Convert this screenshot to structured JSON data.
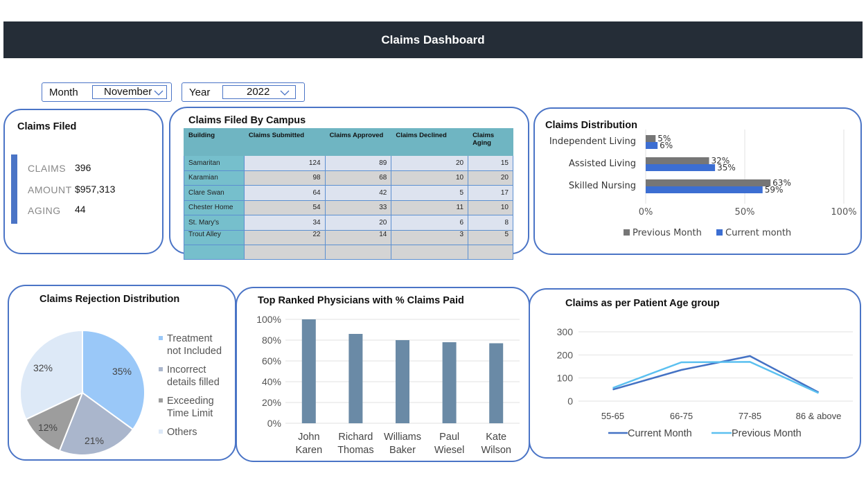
{
  "header": {
    "title": "Claims Dashboard"
  },
  "filters": {
    "month": {
      "label": "Month",
      "value": "November"
    },
    "year": {
      "label": "Year",
      "value": "2022"
    }
  },
  "claims_filed": {
    "title": "Claims Filed",
    "claims_label": "CLAIMS",
    "claims_value": "396",
    "amount_label": "AMOUNT",
    "amount_value": "$957,313",
    "aging_label": "AGING",
    "aging_value": "44"
  },
  "campus": {
    "title": "Claims Filed By Campus",
    "columns": [
      "Building",
      "Claims Submitted",
      "Claims Approved",
      "Claims Declined",
      "Claims Aging"
    ],
    "rows": [
      [
        "Samaritan",
        "124",
        "89",
        "20",
        "15"
      ],
      [
        "Karamian",
        "98",
        "68",
        "10",
        "20"
      ],
      [
        "Clare Swan",
        "64",
        "42",
        "5",
        "17"
      ],
      [
        "Chester Home",
        "54",
        "33",
        "11",
        "10"
      ],
      [
        "St. Mary's",
        "34",
        "20",
        "6",
        "8"
      ],
      [
        "Trout Alley",
        "22",
        "14",
        "3",
        "5"
      ]
    ]
  },
  "distribution": {
    "title": "Claims Distribution"
  },
  "rejection": {
    "title": "Claims Rejection Distribution"
  },
  "physicians": {
    "title": "Top Ranked Physicians with % Claims Paid"
  },
  "age_group": {
    "title": "Claims as per Patient Age group"
  },
  "colors": {
    "header_bg": "#252d37",
    "card_border": "#4a74c6",
    "previous_month_bar": "#767676",
    "current_month_bar": "#3c6ed2",
    "physician_bar": "#6a8aa6",
    "current_line": "#4472c4",
    "previous_line": "#5bc0f0"
  },
  "chart_data": [
    {
      "type": "bar",
      "orientation": "horizontal",
      "categories": [
        "Independent Living",
        "Assisted Living",
        "Skilled Nursing"
      ],
      "series": [
        {
          "name": "Previous Month",
          "values": [
            5,
            32,
            63
          ],
          "labels": [
            "5%",
            "32%",
            "63%"
          ]
        },
        {
          "name": "Current month",
          "values": [
            6,
            35,
            59
          ],
          "labels": [
            "6%",
            "35%",
            "59%"
          ]
        }
      ],
      "xlim": [
        0,
        100
      ],
      "xticks": [
        "0%",
        "50%",
        "100%"
      ],
      "legend": "bottom",
      "grid": true
    },
    {
      "type": "pie",
      "categories": [
        "Treatment not Included",
        "Incorrect details filled",
        "Exceeding Time Limit",
        "Others"
      ],
      "values": [
        35,
        21,
        12,
        32
      ],
      "labels": [
        "35%",
        "21%",
        "12%",
        "32%"
      ],
      "colors": [
        "#9ac8f8",
        "#aab6cc",
        "#9d9d9d",
        "#dde9f7"
      ],
      "legend": "right"
    },
    {
      "type": "bar",
      "categories": [
        "John Karen",
        "Richard Thomas",
        "Williams Baker",
        "Paul Wiesel",
        "Kate Wilson"
      ],
      "category_lines": [
        [
          "John",
          "Karen"
        ],
        [
          "Richard",
          "Thomas"
        ],
        [
          "Williams",
          "Baker"
        ],
        [
          "Paul",
          "Wiesel"
        ],
        [
          "Kate",
          "Wilson"
        ]
      ],
      "values": [
        100,
        86,
        80,
        78,
        77
      ],
      "ylim": [
        0,
        100
      ],
      "yticks": [
        "0%",
        "20%",
        "40%",
        "60%",
        "80%",
        "100%"
      ],
      "grid": true
    },
    {
      "type": "line",
      "categories": [
        "55-65",
        "66-75",
        "77-85",
        "86 & above"
      ],
      "series": [
        {
          "name": "Current Month",
          "values": [
            50,
            135,
            195,
            38
          ]
        },
        {
          "name": "Previous Month",
          "values": [
            57,
            168,
            170,
            35
          ]
        }
      ],
      "ylim": [
        0,
        300
      ],
      "yticks": [
        "0",
        "100",
        "200",
        "300"
      ],
      "legend": "bottom",
      "grid": true
    }
  ]
}
